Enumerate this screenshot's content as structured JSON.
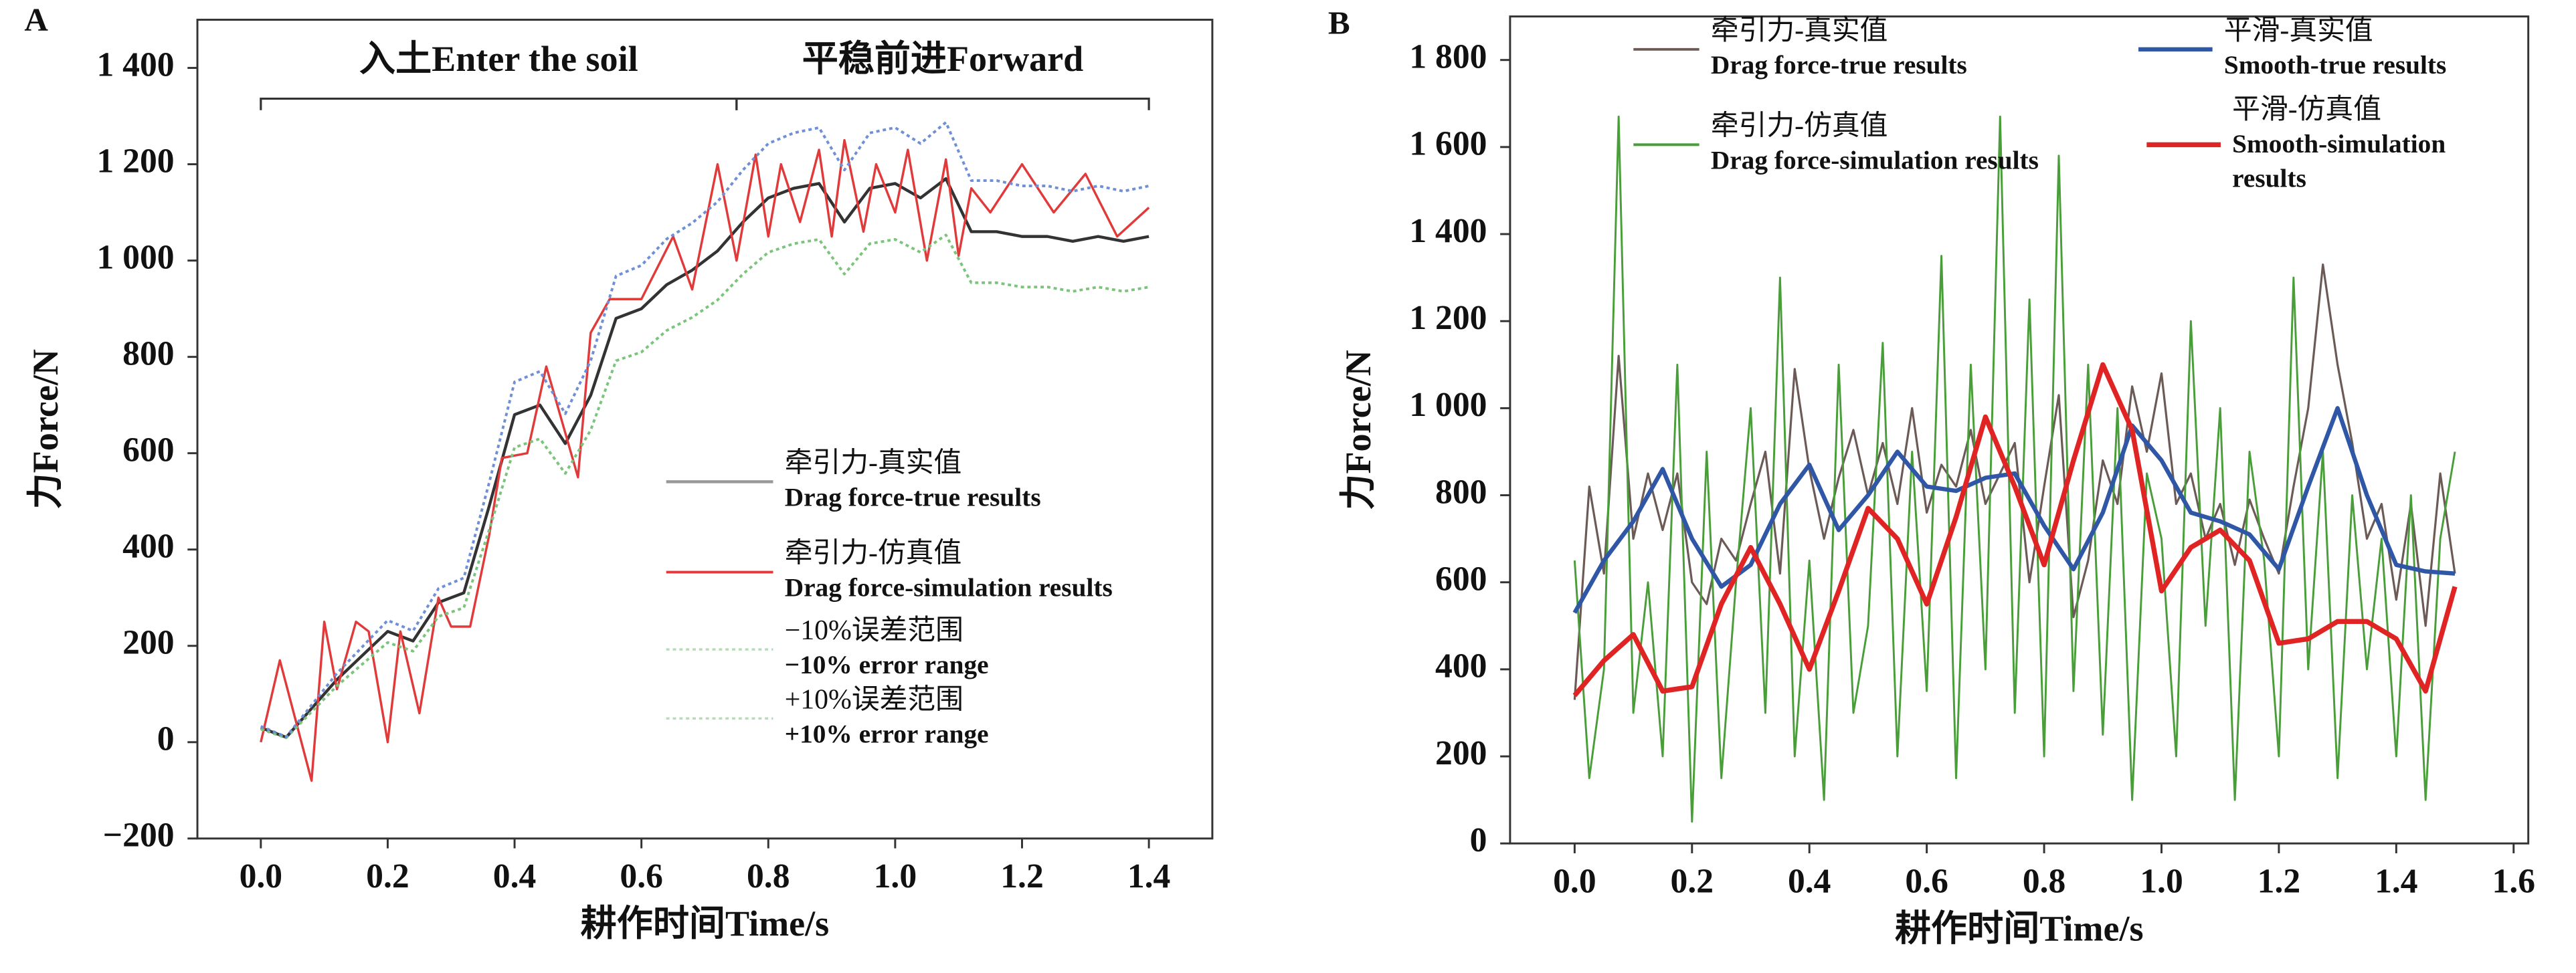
{
  "chart_data": [
    {
      "type": "line",
      "panel": "A",
      "xlabel": "耕作时间Time/s",
      "ylabel": "力Force/N",
      "xlim": [
        -0.1,
        1.5
      ],
      "ylim": [
        -200,
        1500
      ],
      "xticks": [
        {
          "value": 0,
          "label": "0.0"
        },
        0.2,
        0.4,
        0.6,
        0.8,
        {
          "value": 1,
          "label": "1.0"
        },
        1.2,
        1.4
      ],
      "yticks": [
        {
          "value": -200,
          "label": "−200"
        },
        0,
        200,
        400,
        600,
        800,
        {
          "value": 1000,
          "label": "1 000"
        },
        {
          "value": 1200,
          "label": "1 200"
        },
        {
          "value": 1400,
          "label": "1 400"
        }
      ],
      "annotations": [
        {
          "text": "入土Enter the soil",
          "x": [
            0,
            0.75
          ]
        },
        {
          "text": "平稳前进Forward",
          "x": [
            0.75,
            1.4
          ]
        }
      ],
      "x": [
        0,
        0.04,
        0.08,
        0.12,
        0.16,
        0.2,
        0.24,
        0.28,
        0.32,
        0.36,
        0.4,
        0.44,
        0.48,
        0.52,
        0.56,
        0.6,
        0.64,
        0.68,
        0.72,
        0.76,
        0.8,
        0.84,
        0.88,
        0.92,
        0.96,
        1,
        1.04,
        1.08,
        1.12,
        1.16,
        1.2,
        1.24,
        1.28,
        1.32,
        1.36,
        1.4
      ],
      "series": [
        {
          "name": "牵引力-真实值",
          "name_lines": [
            "Drag force-true results"
          ],
          "color": "#333333",
          "legend_color": "#999999",
          "line_width": 1.8,
          "dashed": false,
          "values": [
            30,
            10,
            70,
            130,
            180,
            230,
            210,
            290,
            310,
            490,
            680,
            700,
            620,
            720,
            880,
            900,
            950,
            980,
            1020,
            1080,
            1130,
            1150,
            1160,
            1080,
            1150,
            1160,
            1130,
            1170,
            1060,
            1060,
            1050,
            1050,
            1040,
            1050,
            1040,
            1050
          ]
        },
        {
          "name": "牵引力-仿真值",
          "name_lines": [
            "Drag force-simulation results"
          ],
          "color": "#e03a3a",
          "legend_color": "#e03a3a",
          "line_width": 1.4,
          "dashed": false,
          "x": [
            0,
            0.03,
            0.08,
            0.1,
            0.12,
            0.15,
            0.17,
            0.2,
            0.22,
            0.25,
            0.28,
            0.3,
            0.33,
            0.36,
            0.38,
            0.42,
            0.45,
            0.5,
            0.52,
            0.55,
            0.6,
            0.65,
            0.68,
            0.72,
            0.75,
            0.78,
            0.8,
            0.82,
            0.85,
            0.88,
            0.9,
            0.92,
            0.95,
            0.97,
            1,
            1.02,
            1.05,
            1.08,
            1.1,
            1.12,
            1.15,
            1.2,
            1.25,
            1.3,
            1.35,
            1.4
          ],
          "values": [
            0,
            170,
            -80,
            250,
            110,
            250,
            230,
            0,
            230,
            60,
            300,
            240,
            240,
            430,
            590,
            600,
            780,
            550,
            850,
            920,
            920,
            1050,
            940,
            1200,
            1000,
            1220,
            1050,
            1200,
            1080,
            1230,
            1050,
            1250,
            1060,
            1200,
            1100,
            1230,
            1000,
            1210,
            1010,
            1150,
            1100,
            1200,
            1100,
            1180,
            1050,
            1110
          ]
        },
        {
          "name": "−10%误差范围",
          "name_lines": [
            "−10% error range"
          ],
          "color": "#7cc47c",
          "legend_color": "#b8dcb8",
          "line_width": 1.6,
          "dashed": true,
          "values": [
            27,
            9,
            63,
            117,
            162,
            207,
            189,
            261,
            279,
            441,
            612,
            630,
            558,
            648,
            792,
            810,
            855,
            882,
            918,
            972,
            1017,
            1035,
            1044,
            972,
            1035,
            1044,
            1017,
            1053,
            954,
            954,
            945,
            945,
            936,
            945,
            936,
            945
          ]
        },
        {
          "name": "+10%误差范围",
          "name_lines": [
            "+10% error range"
          ],
          "color": "#6f8fd6",
          "legend_color": "#b8dcb8",
          "line_width": 1.6,
          "dashed": true,
          "values": [
            33,
            11,
            77,
            143,
            198,
            253,
            231,
            319,
            341,
            539,
            748,
            770,
            682,
            792,
            968,
            990,
            1045,
            1078,
            1122,
            1188,
            1243,
            1265,
            1276,
            1188,
            1265,
            1276,
            1243,
            1287,
            1166,
            1166,
            1155,
            1155,
            1144,
            1155,
            1144,
            1155
          ]
        }
      ]
    },
    {
      "type": "line",
      "panel": "B",
      "xlabel": "耕作时间Time/s",
      "ylabel": "力Force/N",
      "xlim": [
        -0.11,
        1.625
      ],
      "ylim": [
        0,
        1900
      ],
      "xticks": [
        {
          "value": 0,
          "label": "0.0"
        },
        0.2,
        0.4,
        0.6,
        0.8,
        {
          "value": 1,
          "label": "1.0"
        },
        1.2,
        1.4,
        1.6
      ],
      "yticks": [
        0,
        200,
        400,
        600,
        800,
        {
          "value": 1000,
          "label": "1 000"
        },
        {
          "value": 1200,
          "label": "1 200"
        },
        {
          "value": 1400,
          "label": "1 400"
        },
        {
          "value": 1600,
          "label": "1 600"
        },
        {
          "value": 1800,
          "label": "1 800"
        }
      ],
      "x": [
        0,
        0.025,
        0.05,
        0.075,
        0.1,
        0.125,
        0.15,
        0.175,
        0.2,
        0.225,
        0.25,
        0.275,
        0.3,
        0.325,
        0.35,
        0.375,
        0.4,
        0.425,
        0.45,
        0.475,
        0.5,
        0.525,
        0.55,
        0.575,
        0.6,
        0.625,
        0.65,
        0.675,
        0.7,
        0.725,
        0.75,
        0.775,
        0.8,
        0.825,
        0.85,
        0.875,
        0.9,
        0.925,
        0.95,
        0.975,
        1,
        1.025,
        1.05,
        1.075,
        1.1,
        1.125,
        1.15,
        1.175,
        1.2,
        1.225,
        1.25,
        1.275,
        1.3,
        1.325,
        1.35,
        1.375,
        1.4,
        1.425,
        1.45,
        1.475,
        1.5
      ],
      "series": [
        {
          "name": "牵引力-真实值",
          "name_lines": [
            "Drag force-true results"
          ],
          "color": "#6b5a55",
          "legend_color": "#6b5a55",
          "line_width": 1.3,
          "dashed": false,
          "values": [
            330,
            820,
            620,
            1120,
            700,
            850,
            720,
            850,
            600,
            550,
            700,
            650,
            780,
            900,
            620,
            1090,
            860,
            700,
            840,
            950,
            800,
            920,
            780,
            1000,
            760,
            870,
            820,
            950,
            780,
            850,
            920,
            600,
            820,
            1030,
            520,
            650,
            880,
            780,
            1050,
            900,
            1080,
            780,
            850,
            700,
            780,
            640,
            790,
            700,
            620,
            820,
            1000,
            1330,
            1100,
            920,
            700,
            780,
            560,
            780,
            500,
            850,
            620
          ]
        },
        {
          "name": "牵引力-仿真值",
          "name_lines": [
            "Drag force-simulation results"
          ],
          "color": "#4a9e3a",
          "legend_color": "#4a9e3a",
          "line_width": 1.2,
          "dashed": false,
          "values": [
            650,
            150,
            400,
            1670,
            300,
            600,
            200,
            1100,
            50,
            900,
            150,
            600,
            1000,
            300,
            1300,
            200,
            650,
            100,
            1100,
            300,
            500,
            1150,
            200,
            900,
            350,
            1350,
            150,
            1100,
            400,
            1670,
            300,
            1250,
            200,
            1580,
            350,
            1100,
            250,
            1000,
            100,
            850,
            700,
            200,
            1200,
            500,
            1000,
            100,
            900,
            650,
            200,
            1300,
            400,
            900,
            150,
            800,
            400,
            700,
            200,
            800,
            100,
            700,
            900
          ]
        },
        {
          "name": "平滑-真实值",
          "name_lines": [
            "Smooth-true results"
          ],
          "color": "#2f57a6",
          "legend_color": "#2f57a6",
          "line_width": 2.6,
          "dashed": false,
          "x": [
            0,
            0.05,
            0.1,
            0.15,
            0.2,
            0.25,
            0.3,
            0.35,
            0.4,
            0.45,
            0.5,
            0.55,
            0.6,
            0.65,
            0.7,
            0.75,
            0.8,
            0.85,
            0.9,
            0.95,
            1,
            1.05,
            1.1,
            1.15,
            1.2,
            1.25,
            1.3,
            1.35,
            1.4,
            1.45,
            1.5
          ],
          "values": [
            530,
            650,
            740,
            860,
            700,
            590,
            640,
            780,
            870,
            720,
            800,
            900,
            820,
            810,
            840,
            850,
            730,
            630,
            760,
            960,
            880,
            760,
            740,
            710,
            630,
            820,
            1000,
            800,
            640,
            625,
            620
          ]
        },
        {
          "name": "平滑-仿真值",
          "name_lines": [
            "Smooth-simulation",
            "results"
          ],
          "color": "#e02424",
          "legend_color": "#e02424",
          "line_width": 3,
          "dashed": false,
          "x": [
            0,
            0.05,
            0.1,
            0.15,
            0.2,
            0.25,
            0.3,
            0.35,
            0.4,
            0.45,
            0.5,
            0.55,
            0.6,
            0.65,
            0.7,
            0.75,
            0.8,
            0.85,
            0.9,
            0.95,
            1,
            1.05,
            1.1,
            1.15,
            1.2,
            1.25,
            1.3,
            1.35,
            1.4,
            1.45,
            1.5
          ],
          "values": [
            340,
            420,
            480,
            350,
            360,
            550,
            680,
            550,
            400,
            580,
            770,
            700,
            550,
            750,
            980,
            820,
            640,
            880,
            1100,
            950,
            580,
            680,
            720,
            650,
            460,
            470,
            510,
            510,
            470,
            350,
            590
          ]
        }
      ]
    }
  ]
}
